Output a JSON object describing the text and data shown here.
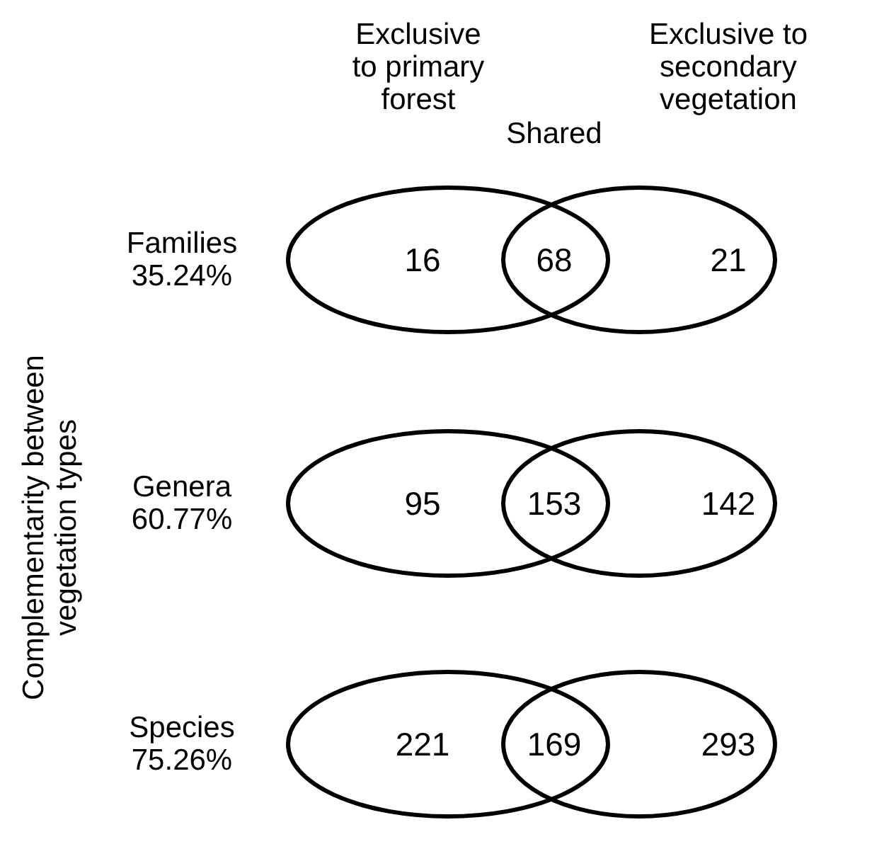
{
  "chart_data": {
    "type": "other",
    "data_labels": true,
    "ylabel": "Complementarity between\nvegetation types",
    "categories": [
      "Exclusive\nto primary\nforest",
      "Shared",
      "Exclusive to\nsecondary\nvegetation"
    ],
    "series": [
      {
        "name": "Families\n35.24%",
        "values": [
          16,
          68,
          21
        ]
      },
      {
        "name": "Genera\n60.77%",
        "values": [
          95,
          153,
          142
        ]
      },
      {
        "name": "Species\n75.26%",
        "values": [
          221,
          169,
          293
        ]
      }
    ]
  }
}
